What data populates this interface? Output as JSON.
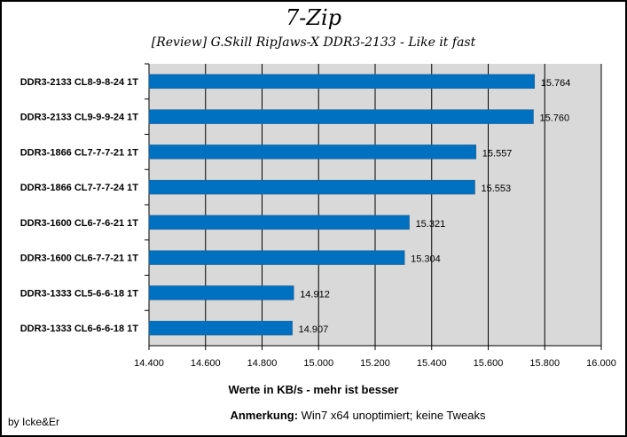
{
  "chart_data": {
    "type": "bar",
    "orientation": "horizontal",
    "title": "7-Zip",
    "subtitle": "[Review] G.Skill RipJaws-X DDR3-2133 - Like it fast",
    "xlabel": "Werte in KB/s - mehr ist besser",
    "categories": [
      "DDR3-2133 CL8-9-8-24  1T",
      "DDR3-2133 CL9-9-9-24  1T",
      "DDR3-1866 CL7-7-7-21  1T",
      "DDR3-1866 CL7-7-7-24  1T",
      "DDR3-1600 CL6-7-6-21  1T",
      "DDR3-1600 CL6-7-7-21  1T",
      "DDR3-1333 CL5-6-6-18  1T",
      "DDR3-1333 CL6-6-6-18  1T"
    ],
    "values": [
      15764,
      15760,
      15557,
      15553,
      15321,
      15304,
      14912,
      14907
    ],
    "value_labels": [
      "15.764",
      "15.760",
      "15.557",
      "15.553",
      "15.321",
      "15.304",
      "14.912",
      "14.907"
    ],
    "xlim": [
      14400,
      16000
    ],
    "x_ticks": [
      "14.400",
      "14.600",
      "14.800",
      "15.000",
      "15.200",
      "15.400",
      "15.600",
      "15.800",
      "16.000"
    ],
    "grid": true,
    "bar_color": "#0070C0",
    "plot_background": "#D9D9D9"
  },
  "footer": {
    "credit": "by Icke&Er",
    "note_label": "Anmerkung:",
    "note_text": " Win7 x64 unoptimiert; keine Tweaks"
  }
}
